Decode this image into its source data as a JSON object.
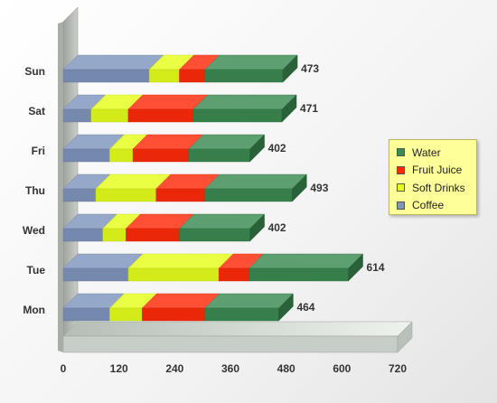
{
  "chart_data": {
    "type": "bar",
    "orientation": "horizontal",
    "stacked": true,
    "categories": [
      "Mon",
      "Tue",
      "Wed",
      "Thu",
      "Fri",
      "Sat",
      "Sun"
    ],
    "series": [
      {
        "name": "Coffee",
        "color": "#7f95bd",
        "values": [
          100,
          140,
          85,
          70,
          100,
          60,
          185
        ]
      },
      {
        "name": "Soft Drinks",
        "color": "#e5ff1a",
        "values": [
          70,
          195,
          50,
          130,
          50,
          80,
          65
        ]
      },
      {
        "name": "Fruit Juice",
        "color": "#ff2a0a",
        "values": [
          135,
          65,
          115,
          105,
          120,
          140,
          55
        ]
      },
      {
        "name": "Water",
        "color": "#3b8a52",
        "values": [
          159,
          214,
          152,
          188,
          132,
          191,
          168
        ]
      }
    ],
    "totals": [
      464,
      614,
      402,
      493,
      402,
      471,
      473
    ],
    "xticks": [
      "0",
      "120",
      "240",
      "360",
      "480",
      "600",
      "720"
    ],
    "xlim": [
      0,
      720
    ],
    "legend_position": "right",
    "grid": false
  },
  "legend_order": [
    "Water",
    "Fruit Juice",
    "Soft Drinks",
    "Coffee"
  ]
}
